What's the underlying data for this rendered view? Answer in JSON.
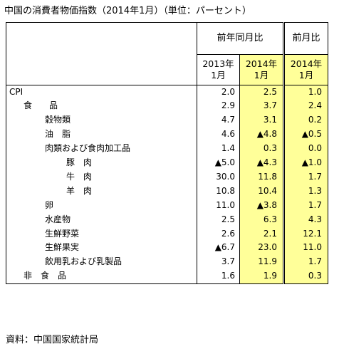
{
  "title": "中国の消費者物価指数（2014年1月）（単位：パーセント）",
  "header": {
    "yoy_group": "前年同月比",
    "mom_group": "前月比",
    "col_2013": [
      "2013年",
      "1月"
    ],
    "col_2014": [
      "2014年",
      "1月"
    ],
    "col_mom": [
      "2014年",
      "1月"
    ]
  },
  "rows": [
    {
      "label": "CPI",
      "indent": 0,
      "v2013": "2.0",
      "v2014": "2.5",
      "mom": "1.0"
    },
    {
      "label": "食　　品",
      "indent": 20,
      "v2013": "2.9",
      "v2014": "3.7",
      "mom": "2.4"
    },
    {
      "label": "穀物類",
      "indent": 50,
      "v2013": "4.7",
      "v2014": "3.1",
      "mom": "0.2"
    },
    {
      "label": "油　脂",
      "indent": 50,
      "v2013": "4.6",
      "v2014": "▲4.8",
      "mom": "▲0.5"
    },
    {
      "label": "肉類および食肉加工品",
      "indent": 50,
      "v2013": "1.4",
      "v2014": "0.3",
      "mom": "0.0"
    },
    {
      "label": "豚　肉",
      "indent": 80,
      "v2013": "▲5.0",
      "v2014": "▲4.3",
      "mom": "▲1.0"
    },
    {
      "label": "牛　肉",
      "indent": 80,
      "v2013": "30.0",
      "v2014": "11.8",
      "mom": "1.7"
    },
    {
      "label": "羊　肉",
      "indent": 80,
      "v2013": "10.8",
      "v2014": "10.4",
      "mom": "1.3"
    },
    {
      "label": "卵",
      "indent": 50,
      "v2013": "11.0",
      "v2014": "▲3.8",
      "mom": "1.7"
    },
    {
      "label": "水産物",
      "indent": 50,
      "v2013": "2.5",
      "v2014": "6.3",
      "mom": "4.3"
    },
    {
      "label": "生鮮野菜",
      "indent": 50,
      "v2013": "2.6",
      "v2014": "2.1",
      "mom": "12.1"
    },
    {
      "label": "生鮮果実",
      "indent": 50,
      "v2013": "▲6.7",
      "v2014": "23.0",
      "mom": "11.0"
    },
    {
      "label": "飲用乳および乳製品",
      "indent": 50,
      "v2013": "3.7",
      "v2014": "11.9",
      "mom": "1.7"
    },
    {
      "label": "非　食　品",
      "indent": 20,
      "v2013": "1.6",
      "v2014": "1.9",
      "mom": "0.3"
    }
  ],
  "source": "資料：中国国家統計局",
  "colors": {
    "highlight": "#ffff99",
    "border": "#000000"
  }
}
